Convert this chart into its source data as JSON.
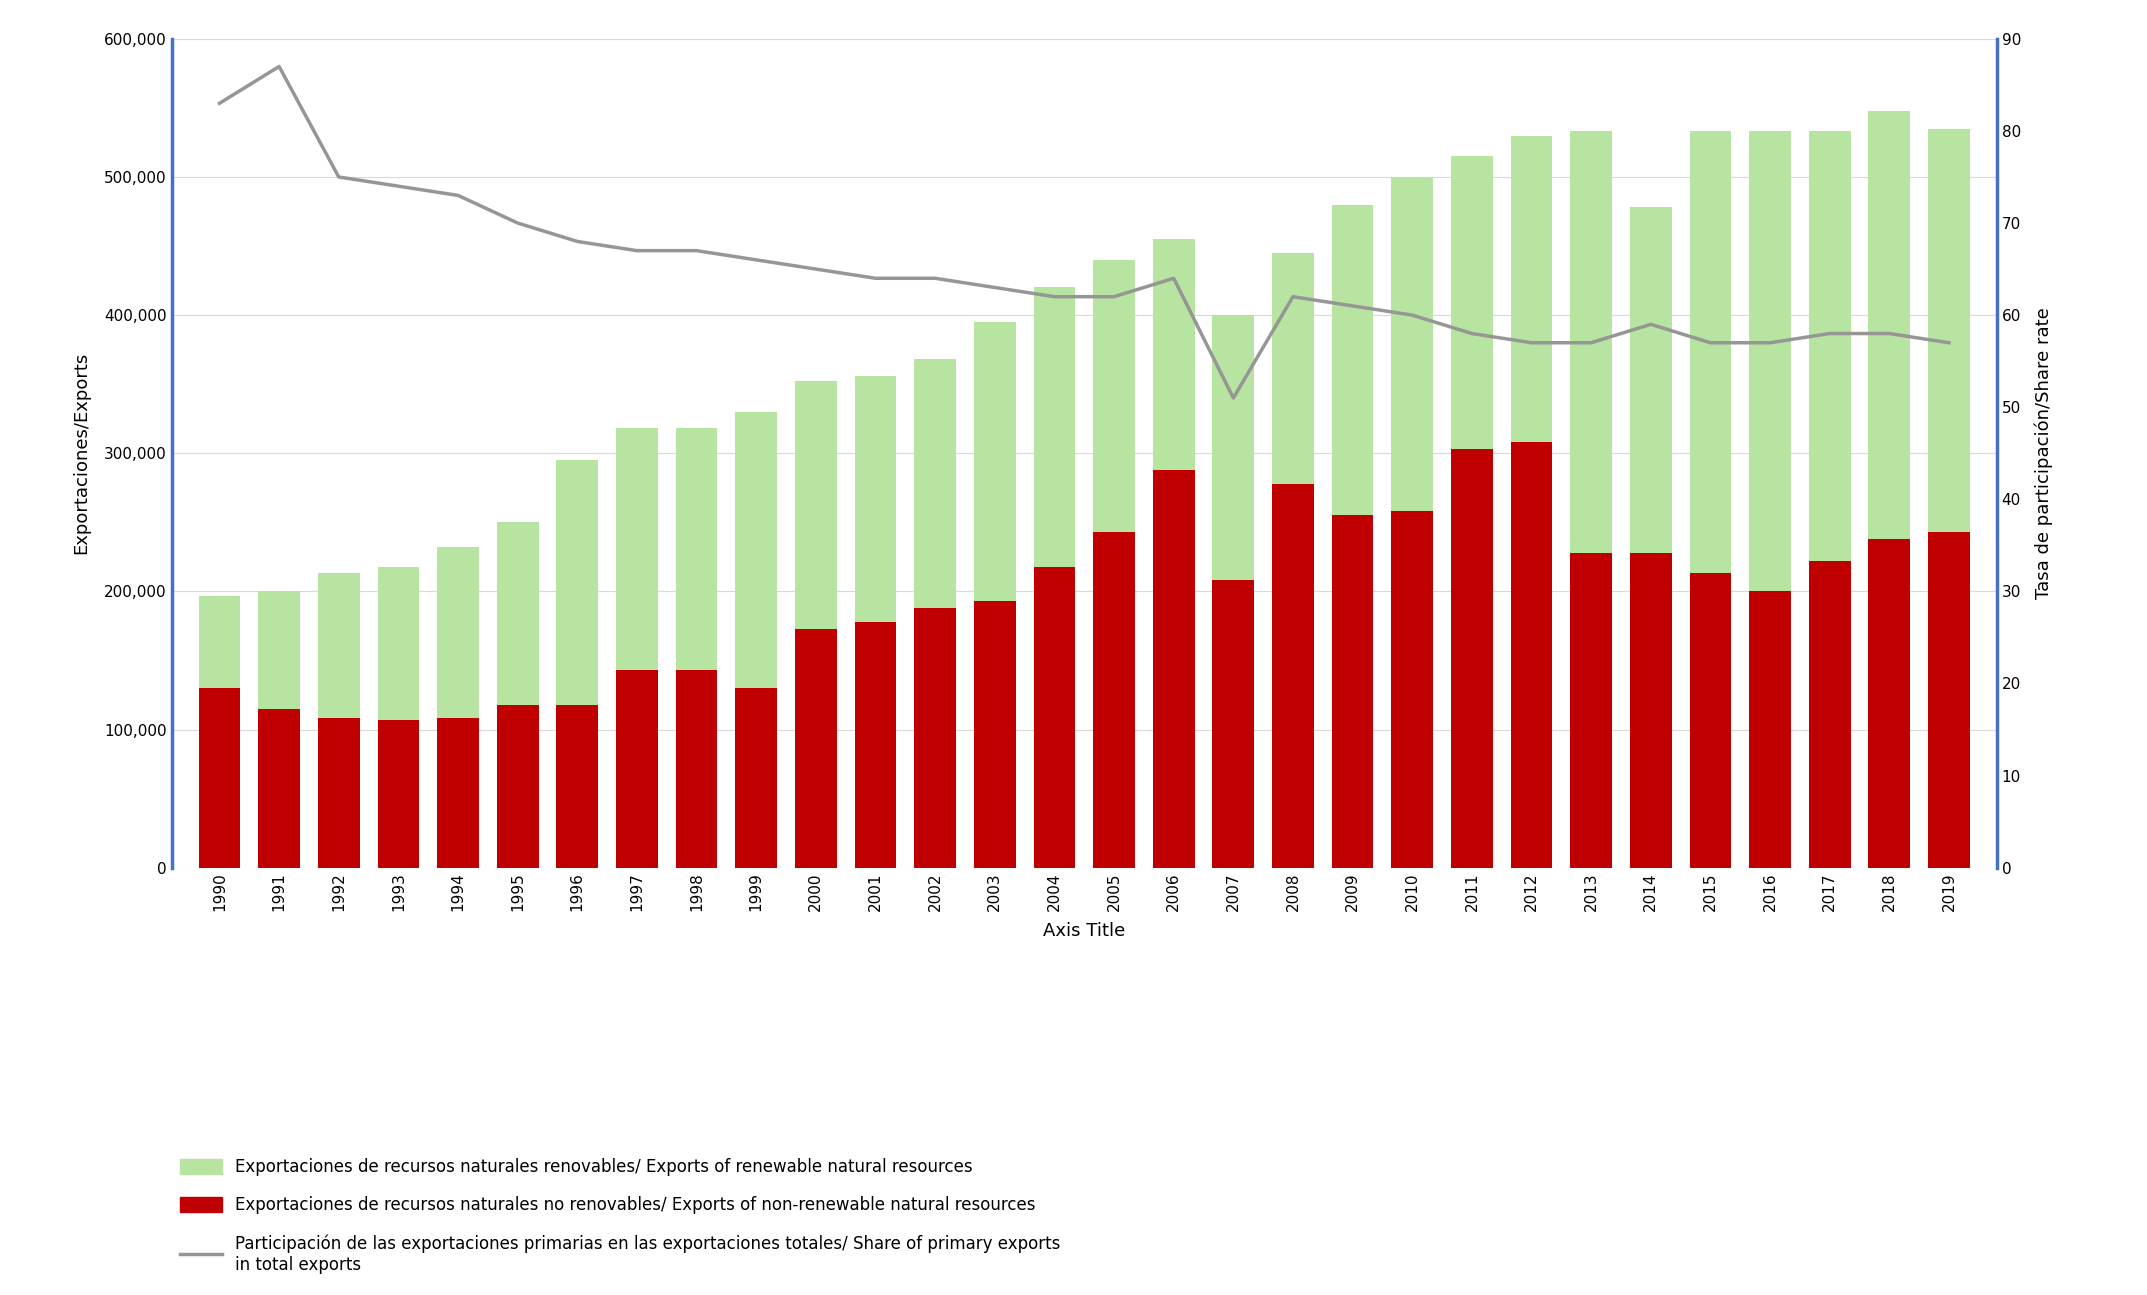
{
  "years": [
    1990,
    1991,
    1992,
    1993,
    1994,
    1995,
    1996,
    1997,
    1998,
    1999,
    2000,
    2001,
    2002,
    2003,
    2004,
    2005,
    2006,
    2007,
    2008,
    2009,
    2010,
    2011,
    2012,
    2013,
    2014,
    2015,
    2016,
    2017,
    2018,
    2019
  ],
  "renewable": [
    197000,
    200000,
    213000,
    218000,
    232000,
    250000,
    295000,
    318000,
    318000,
    330000,
    352000,
    356000,
    368000,
    395000,
    420000,
    440000,
    455000,
    400000,
    445000,
    480000,
    500000,
    515000,
    530000,
    533000,
    478000,
    533000,
    533000,
    533000,
    548000,
    535000
  ],
  "non_renewable": [
    130000,
    115000,
    108000,
    107000,
    108000,
    118000,
    118000,
    143000,
    143000,
    130000,
    173000,
    178000,
    188000,
    193000,
    218000,
    243000,
    288000,
    208000,
    278000,
    255000,
    258000,
    303000,
    308000,
    228000,
    228000,
    213000,
    200000,
    222000,
    238000,
    243000
  ],
  "share_rate": [
    83,
    87,
    75,
    74,
    73,
    70,
    68,
    67,
    67,
    66,
    65,
    64,
    64,
    63,
    62,
    62,
    64,
    51,
    62,
    61,
    60,
    58,
    57,
    57,
    59,
    57,
    57,
    58,
    58,
    57
  ],
  "left_ylim": [
    0,
    600000
  ],
  "left_yticks": [
    0,
    100000,
    200000,
    300000,
    400000,
    500000,
    600000
  ],
  "right_ylim": [
    0,
    90
  ],
  "right_yticks": [
    0,
    10,
    20,
    30,
    40,
    50,
    60,
    70,
    80,
    90
  ],
  "xlabel": "Axis Title",
  "ylabel_left": "Exportaciones/Exports",
  "ylabel_right": "Tasa de participación/Share rate",
  "bar_color_renewable": "#b7e4a0",
  "bar_color_non_renewable": "#c00000",
  "line_color": "#969696",
  "legend_renewable": "Exportaciones de recursos naturales renovables/ Exports of renewable natural resources",
  "legend_non_renewable": "Exportaciones de recursos naturales no renovables/ Exports of non-renewable natural resources",
  "legend_share": "Participación de las exportaciones primarias en las exportaciones totales/ Share of primary exports\nin total exports",
  "background_color": "#ffffff",
  "grid_color": "#d9d9d9",
  "axis_color": "#4472c4",
  "line_width": 2.5,
  "bar_width": 0.7
}
